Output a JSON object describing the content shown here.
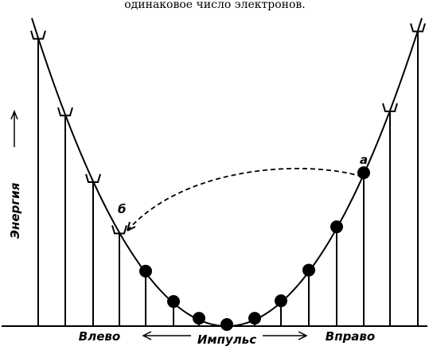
{
  "header": {
    "caption": "одинаковое число электронов."
  },
  "axis": {
    "energy": "Энергия",
    "momentum": "Импульс",
    "left": "Влево",
    "right": "Вправо"
  },
  "points": {
    "a": "a",
    "b": "б"
  }
}
